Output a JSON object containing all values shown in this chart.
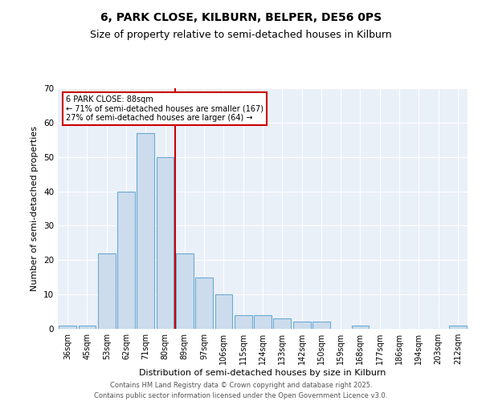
{
  "title_line1": "6, PARK CLOSE, KILBURN, BELPER, DE56 0PS",
  "title_line2": "Size of property relative to semi-detached houses in Kilburn",
  "xlabel": "Distribution of semi-detached houses by size in Kilburn",
  "ylabel": "Number of semi-detached properties",
  "categories": [
    "36sqm",
    "45sqm",
    "53sqm",
    "62sqm",
    "71sqm",
    "80sqm",
    "89sqm",
    "97sqm",
    "106sqm",
    "115sqm",
    "124sqm",
    "133sqm",
    "142sqm",
    "150sqm",
    "159sqm",
    "168sqm",
    "177sqm",
    "186sqm",
    "194sqm",
    "203sqm",
    "212sqm"
  ],
  "values": [
    1,
    1,
    22,
    40,
    57,
    50,
    22,
    15,
    10,
    4,
    4,
    3,
    2,
    2,
    0,
    1,
    0,
    0,
    0,
    0,
    1
  ],
  "bar_color": "#cddcec",
  "bar_edge_color": "#6aaad4",
  "vline_x_index": 6,
  "vline_color": "#cc0000",
  "annotation_text": "6 PARK CLOSE: 88sqm\n← 71% of semi-detached houses are smaller (167)\n27% of semi-detached houses are larger (64) →",
  "annotation_box_color": "#cc0000",
  "ylim": [
    0,
    70
  ],
  "yticks": [
    0,
    10,
    20,
    30,
    40,
    50,
    60,
    70
  ],
  "bg_color": "#eaf0f8",
  "footer_line1": "Contains HM Land Registry data © Crown copyright and database right 2025.",
  "footer_line2": "Contains public sector information licensed under the Open Government Licence v3.0.",
  "title_fontsize": 10,
  "subtitle_fontsize": 9,
  "axis_label_fontsize": 8,
  "tick_fontsize": 7,
  "footer_fontsize": 6
}
